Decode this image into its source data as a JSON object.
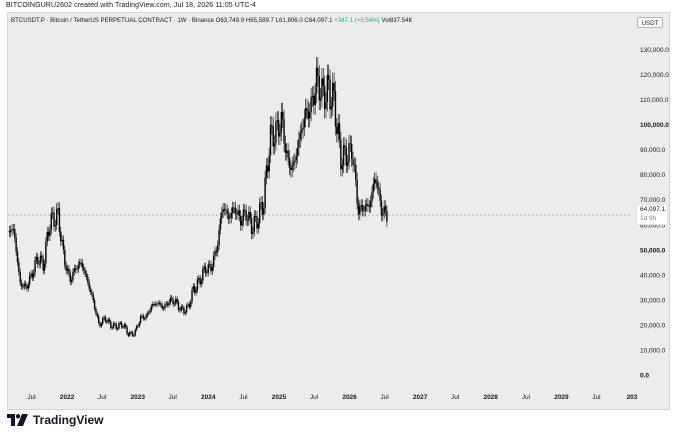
{
  "page": {
    "top_note": "BITCOINGURU2602 created with TradingView.com, Jul 18, 2026 11:05 UTC-4",
    "brand": "TradingView"
  },
  "legend": {
    "symbol": "BTCUSDT.P · Bitcoin / TetherUS PERPETUAL CONTRACT · 1W · Binance",
    "ohlc": "O63,749.9  H65,589.7  L61,806.0  C64,097.1",
    "change": "+347.1 (+0.54%)",
    "volume": "Vol837.54K"
  },
  "currency_button": "USDT",
  "last_price": {
    "value": "64,097.1",
    "countdown": "1d 9h"
  },
  "colors": {
    "background": "#ececec",
    "candle": "#000000",
    "text": "#131722",
    "change": "#22ab94"
  },
  "icons": [
    "tradingview-logo-icon"
  ],
  "chart_data": {
    "type": "candlestick",
    "title": "BTCUSDT.P · Bitcoin / TetherUS PERPETUAL CONTRACT · 1W · Binance",
    "xlabel": "",
    "ylabel": "",
    "x_tick_labels": [
      "Jul",
      "2022",
      "Jul",
      "2023",
      "Jul",
      "2024",
      "Jul",
      "2025",
      "Jul",
      "2026",
      "Jul",
      "2027",
      "Jul",
      "2028",
      "Jul",
      "2029",
      "Jul",
      "203"
    ],
    "y_tick_labels": [
      "0.0",
      "10,000.0",
      "20,000.0",
      "30,000.0",
      "40,000.0",
      "50,000.0",
      "60,000.0",
      "70,000.0",
      "80,000.0",
      "90,000.0",
      "100,000.0",
      "110,000.0",
      "120,000.0",
      "130,000.0"
    ],
    "y_ticks": [
      0,
      10000,
      20000,
      30000,
      40000,
      50000,
      60000,
      70000,
      80000,
      90000,
      100000,
      110000,
      120000,
      130000
    ],
    "ylim": [
      -5000,
      138000
    ],
    "xlim": [
      "2021-03-01",
      "2030-01-01"
    ],
    "grid": false,
    "series": [
      {
        "name": "BTCUSDT.P",
        "points": [
          [
            "2021-03-01",
            58000
          ],
          [
            "2021-04-01",
            58000
          ],
          [
            "2021-05-01",
            37000
          ],
          [
            "2021-06-01",
            35000
          ],
          [
            "2021-07-01",
            40000
          ],
          [
            "2021-08-01",
            47000
          ],
          [
            "2021-09-01",
            44000
          ],
          [
            "2021-10-01",
            61000
          ],
          [
            "2021-11-15",
            64000
          ],
          [
            "2021-12-15",
            47000
          ],
          [
            "2022-01-15",
            38000
          ],
          [
            "2022-02-15",
            43000
          ],
          [
            "2022-03-15",
            45000
          ],
          [
            "2022-04-15",
            38000
          ],
          [
            "2022-05-15",
            30000
          ],
          [
            "2022-06-15",
            20000
          ],
          [
            "2022-07-15",
            23000
          ],
          [
            "2022-08-15",
            20000
          ],
          [
            "2022-09-15",
            19500
          ],
          [
            "2022-10-15",
            20500
          ],
          [
            "2022-11-15",
            16500
          ],
          [
            "2022-12-15",
            16700
          ],
          [
            "2023-01-15",
            23000
          ],
          [
            "2023-02-15",
            23500
          ],
          [
            "2023-03-15",
            28000
          ],
          [
            "2023-04-15",
            29000
          ],
          [
            "2023-05-15",
            27000
          ],
          [
            "2023-06-15",
            30000
          ],
          [
            "2023-07-15",
            29500
          ],
          [
            "2023-08-15",
            26000
          ],
          [
            "2023-09-15",
            26500
          ],
          [
            "2023-10-15",
            34000
          ],
          [
            "2023-11-15",
            37500
          ],
          [
            "2023-12-15",
            42500
          ],
          [
            "2024-01-15",
            43000
          ],
          [
            "2024-02-15",
            51000
          ],
          [
            "2024-03-15",
            68000
          ],
          [
            "2024-04-15",
            63000
          ],
          [
            "2024-05-15",
            67000
          ],
          [
            "2024-06-15",
            62000
          ],
          [
            "2024-07-15",
            65000
          ],
          [
            "2024-08-15",
            59000
          ],
          [
            "2024-09-15",
            63000
          ],
          [
            "2024-10-15",
            70000
          ],
          [
            "2024-11-15",
            95000
          ],
          [
            "2024-12-15",
            97000
          ],
          [
            "2025-01-15",
            102000
          ],
          [
            "2025-02-15",
            85000
          ],
          [
            "2025-03-15",
            83000
          ],
          [
            "2025-04-15",
            94000
          ],
          [
            "2025-05-15",
            104000
          ],
          [
            "2025-06-15",
            107000
          ],
          [
            "2025-07-15",
            118000
          ],
          [
            "2025-08-15",
            112000
          ],
          [
            "2025-09-15",
            114000
          ],
          [
            "2025-10-15",
            109000
          ],
          [
            "2025-11-15",
            87000
          ],
          [
            "2025-12-15",
            88000
          ],
          [
            "2026-01-15",
            90000
          ],
          [
            "2026-02-15",
            66000
          ],
          [
            "2026-03-15",
            67000
          ],
          [
            "2026-04-15",
            68000
          ],
          [
            "2026-05-15",
            80000
          ],
          [
            "2026-06-15",
            66000
          ],
          [
            "2026-07-15",
            64097
          ]
        ]
      }
    ]
  }
}
